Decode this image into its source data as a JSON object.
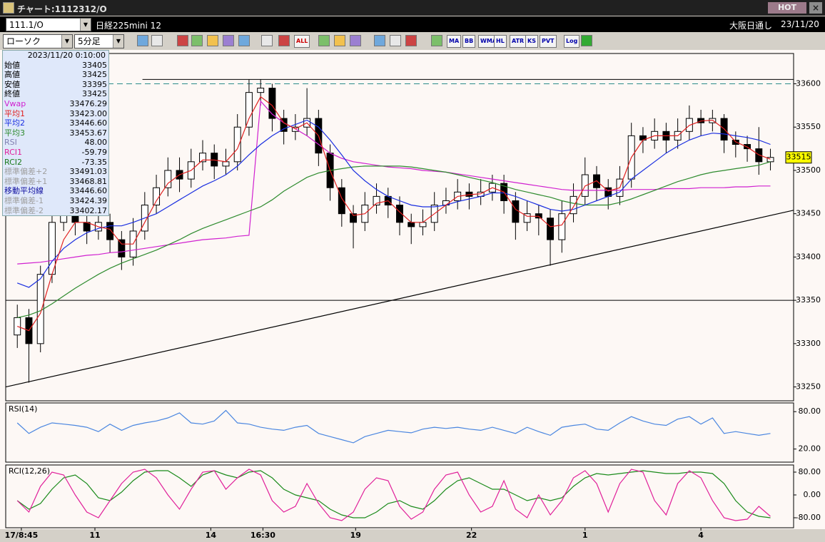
{
  "window": {
    "title": "チャート:1112312/O",
    "hot": "HOT"
  },
  "toolbar": {
    "symbol": "111.1/O",
    "name": "日経225mini 12",
    "market": "大阪日通し",
    "date": "23/11/20",
    "chart_type": "ローソク",
    "interval": "5分足",
    "buttons": [
      "ALL",
      "MA",
      "BB",
      "WMA",
      "HL",
      "ATR",
      "KS",
      "PVT",
      "Log"
    ]
  },
  "info_panel": {
    "datetime": "2023/11/20 0:10:00",
    "rows": [
      {
        "label": "始値",
        "value": "33405",
        "color": "#000000"
      },
      {
        "label": "高値",
        "value": "33425",
        "color": "#000000"
      },
      {
        "label": "安値",
        "value": "33395",
        "color": "#000000"
      },
      {
        "label": "終値",
        "value": "33425",
        "color": "#000000"
      },
      {
        "label": "Vwap",
        "value": "33476.29",
        "color": "#d020d0"
      },
      {
        "label": "平均1",
        "value": "33423.00",
        "color": "#e02020"
      },
      {
        "label": "平均2",
        "value": "33446.60",
        "color": "#1a2ee0"
      },
      {
        "label": "平均3",
        "value": "33453.67",
        "color": "#2e8b2e"
      },
      {
        "label": "RSI",
        "value": "48.00",
        "color": "#8080b0"
      },
      {
        "label": "RCI1",
        "value": "-59.79",
        "color": "#e0209a"
      },
      {
        "label": "RCI2",
        "value": "-73.35",
        "color": "#1a7a1a"
      },
      {
        "label": "標準偏差+2",
        "value": "33491.03",
        "color": "#a0a0a0"
      },
      {
        "label": "標準偏差+1",
        "value": "33468.81",
        "color": "#a0a0a0"
      },
      {
        "label": "移動平均線",
        "value": "33446.60",
        "color": "#1010a0"
      },
      {
        "label": "標準偏差-1",
        "value": "33424.39",
        "color": "#a0a0a0"
      },
      {
        "label": "標準偏差-2",
        "value": "33402.17",
        "color": "#a0a0a0"
      }
    ]
  },
  "chart_data": [
    {
      "type": "candlestick",
      "xlim": [
        -1,
        67
      ],
      "xticks": [
        {
          "value": 0.35,
          "label": "17/8:45"
        },
        {
          "value": 6.7,
          "label": "11"
        },
        {
          "value": 16.7,
          "label": "14"
        },
        {
          "value": 21.2,
          "label": "16:30"
        },
        {
          "value": 29.2,
          "label": "19"
        },
        {
          "value": 39.2,
          "label": "22"
        },
        {
          "value": 49,
          "label": "1"
        },
        {
          "value": 59,
          "label": "4"
        }
      ],
      "ylim": [
        33234,
        33635
      ],
      "yticks": [
        33250,
        33300,
        33350,
        33400,
        33450,
        33500,
        33550,
        33600
      ],
      "colors": {
        "up": "#ffffff",
        "down": "#000000"
      },
      "open": [
        33310,
        33330,
        33300,
        33380,
        33440,
        33450,
        33440,
        33430,
        33440,
        33420,
        33400,
        33430,
        33460,
        33480,
        33500,
        33490,
        33510,
        33520,
        33505,
        33510,
        33550,
        33590,
        33595,
        33560,
        33545,
        33550,
        33560,
        33520,
        33480,
        33450,
        33440,
        33460,
        33470,
        33460,
        33440,
        33435,
        33440,
        33460,
        33465,
        33475,
        33470,
        33475,
        33485,
        33465,
        33440,
        33450,
        33445,
        33420,
        33450,
        33470,
        33495,
        33480,
        33470,
        33490,
        33540,
        33535,
        33545,
        33535,
        33545,
        33560,
        33555,
        33560,
        33535,
        33530,
        33525,
        33510
      ],
      "high": [
        33345,
        33340,
        33390,
        33455,
        33465,
        33465,
        33455,
        33455,
        33450,
        33430,
        33445,
        33475,
        33495,
        33515,
        33515,
        33525,
        33535,
        33530,
        33525,
        33565,
        33605,
        33605,
        33600,
        33570,
        33565,
        33595,
        33570,
        33530,
        33490,
        33460,
        33475,
        33485,
        33480,
        33470,
        33450,
        33455,
        33475,
        33480,
        33490,
        33485,
        33490,
        33495,
        33495,
        33475,
        33465,
        33460,
        33455,
        33465,
        33485,
        33515,
        33505,
        33490,
        33505,
        33555,
        33550,
        33560,
        33555,
        33560,
        33575,
        33570,
        33570,
        33565,
        33545,
        33540,
        33550,
        33525
      ],
      "low": [
        33295,
        33255,
        33290,
        33370,
        33430,
        33425,
        33415,
        33420,
        33405,
        33385,
        33390,
        33420,
        33450,
        33470,
        33475,
        33480,
        33500,
        33490,
        33495,
        33500,
        33540,
        33575,
        33545,
        33530,
        33535,
        33540,
        33505,
        33465,
        33435,
        33410,
        33430,
        33450,
        33445,
        33425,
        33415,
        33425,
        33430,
        33450,
        33455,
        33455,
        33460,
        33465,
        33450,
        33420,
        33430,
        33425,
        33390,
        33405,
        33440,
        33460,
        33465,
        33455,
        33460,
        33480,
        33520,
        33525,
        33520,
        33525,
        33535,
        33540,
        33545,
        33520,
        33515,
        33510,
        33495,
        33500
      ],
      "close": [
        33330,
        33300,
        33380,
        33440,
        33450,
        33440,
        33430,
        33440,
        33420,
        33400,
        33430,
        33460,
        33480,
        33500,
        33490,
        33510,
        33520,
        33505,
        33510,
        33550,
        33590,
        33595,
        33560,
        33545,
        33550,
        33560,
        33520,
        33480,
        33450,
        33440,
        33460,
        33470,
        33460,
        33440,
        33435,
        33440,
        33460,
        33465,
        33475,
        33470,
        33475,
        33485,
        33465,
        33440,
        33450,
        33445,
        33420,
        33450,
        33470,
        33495,
        33480,
        33470,
        33490,
        33540,
        33535,
        33545,
        33535,
        33545,
        33560,
        33555,
        33560,
        33535,
        33530,
        33525,
        33510,
        33515
      ],
      "series": [
        {
          "color": "#d020d0",
          "values": [
            33392,
            33393,
            33394,
            33396,
            33398,
            33400,
            33402,
            33403,
            33405,
            33406,
            33408,
            33410,
            33412,
            33414,
            33416,
            33418,
            33420,
            33421,
            33422,
            33424,
            33425,
            33580,
            33565,
            33555,
            33548,
            33540,
            33530,
            33520,
            33514,
            33510,
            33508,
            33506,
            33504,
            33503,
            33502,
            33500,
            33499,
            33498,
            33496,
            33494,
            33492,
            33490,
            33488,
            33486,
            33484,
            33482,
            33480,
            33478,
            33477,
            33477,
            33477,
            33477,
            33477,
            33478,
            33478,
            33478,
            33479,
            33479,
            33479,
            33480,
            33480,
            33480,
            33481,
            33481,
            33482,
            33482
          ]
        },
        {
          "color": "#2e8b2e",
          "values": [
            33330,
            33333,
            33338,
            33346,
            33355,
            33364,
            33372,
            33380,
            33387,
            33393,
            33398,
            33403,
            33408,
            33414,
            33420,
            33427,
            33433,
            33438,
            33443,
            33448,
            33453,
            33458,
            33466,
            33476,
            33484,
            33492,
            33497,
            33500,
            33502,
            33504,
            33505,
            33505,
            33505,
            33505,
            33504,
            33502,
            33500,
            33498,
            33495,
            33492,
            33489,
            33486,
            33482,
            33478,
            33475,
            33472,
            33469,
            33465,
            33462,
            33460,
            33460,
            33460,
            33463,
            33467,
            33472,
            33477,
            33482,
            33487,
            33491,
            33495,
            33498,
            33500,
            33502,
            33504,
            33506,
            33510
          ]
        },
        {
          "color": "#1a2ee0",
          "values": [
            33370,
            33365,
            33375,
            33395,
            33410,
            33420,
            33428,
            33433,
            33436,
            33436,
            33440,
            33445,
            33450,
            33458,
            33466,
            33474,
            33482,
            33488,
            33495,
            33505,
            33518,
            33530,
            33540,
            33548,
            33553,
            33558,
            33550,
            33535,
            33518,
            33500,
            33488,
            33478,
            33470,
            33465,
            33460,
            33458,
            33458,
            33460,
            33464,
            33467,
            33470,
            33474,
            33474,
            33470,
            33465,
            33460,
            33455,
            33453,
            33455,
            33460,
            33465,
            33470,
            33475,
            33490,
            33500,
            33510,
            33520,
            33528,
            33535,
            33540,
            33543,
            33542,
            33540,
            33538,
            33535,
            33530
          ]
        },
        {
          "color": "#e02020",
          "values": [
            33320,
            33315,
            33335,
            33380,
            33420,
            33440,
            33440,
            33435,
            33432,
            33415,
            33415,
            33440,
            33465,
            33485,
            33495,
            33500,
            33512,
            33512,
            33510,
            33525,
            33560,
            33585,
            33575,
            33555,
            33548,
            33555,
            33540,
            33500,
            33468,
            33448,
            33450,
            33462,
            33465,
            33452,
            33440,
            33440,
            33450,
            33460,
            33470,
            33472,
            33473,
            33480,
            33475,
            33455,
            33447,
            33447,
            33435,
            33437,
            33458,
            33482,
            33488,
            33476,
            33480,
            33515,
            33535,
            33540,
            33540,
            33540,
            33552,
            33557,
            33558,
            33548,
            33533,
            33527,
            33518,
            33513
          ]
        }
      ],
      "hlines": [
        {
          "value": 33605,
          "color": "#000000",
          "from": 10.8
        },
        {
          "value": 33600,
          "color": "#2a8a8a",
          "dashed": true
        },
        {
          "value": 33350,
          "color": "#000000"
        }
      ],
      "trendline": {
        "x": [
          -1,
          67
        ],
        "y": [
          33250,
          33454
        ],
        "color": "#000000"
      },
      "last_price": 33515
    },
    {
      "type": "line",
      "title": "RSI(14)",
      "ylim": [
        -1,
        94
      ],
      "yticks": [
        {
          "value": 80,
          "label": "80.00"
        },
        {
          "value": 20,
          "label": "20.00"
        }
      ],
      "series": [
        {
          "color": "#4a86e0",
          "values": [
            62,
            45,
            55,
            62,
            60,
            58,
            55,
            48,
            60,
            50,
            58,
            62,
            65,
            70,
            78,
            62,
            60,
            65,
            82,
            62,
            60,
            55,
            52,
            50,
            55,
            58,
            45,
            40,
            35,
            30,
            40,
            45,
            50,
            48,
            46,
            52,
            55,
            53,
            55,
            52,
            50,
            55,
            50,
            45,
            55,
            48,
            42,
            55,
            58,
            60,
            52,
            50,
            62,
            72,
            65,
            60,
            58,
            68,
            72,
            60,
            70,
            45,
            48,
            45,
            42,
            45
          ]
        }
      ]
    },
    {
      "type": "line",
      "title": "RCI(12,26)",
      "ylim": [
        -115,
        105
      ],
      "yticks": [
        {
          "value": 80,
          "label": "80.00"
        },
        {
          "value": 0,
          "label": "0.00"
        },
        {
          "value": -80,
          "label": "-80.00"
        }
      ],
      "series": [
        {
          "color": "#1a8a1a",
          "values": [
            -20,
            -50,
            -30,
            20,
            60,
            70,
            40,
            -10,
            -20,
            10,
            50,
            80,
            85,
            85,
            60,
            30,
            70,
            85,
            70,
            60,
            80,
            85,
            60,
            20,
            0,
            -10,
            -20,
            -50,
            -70,
            -80,
            -80,
            -60,
            -30,
            -20,
            -40,
            -50,
            -20,
            20,
            50,
            60,
            40,
            20,
            20,
            0,
            -20,
            -10,
            -20,
            -10,
            30,
            60,
            75,
            70,
            75,
            80,
            85,
            80,
            75,
            75,
            80,
            80,
            75,
            40,
            -20,
            -60,
            -75,
            -80
          ]
        },
        {
          "color": "#e0209a",
          "values": [
            -20,
            -60,
            30,
            80,
            70,
            0,
            -60,
            -80,
            -20,
            40,
            80,
            90,
            60,
            0,
            -50,
            20,
            80,
            85,
            20,
            60,
            90,
            70,
            -20,
            -60,
            -40,
            40,
            -30,
            -80,
            -90,
            -60,
            20,
            60,
            50,
            -40,
            -85,
            -60,
            20,
            70,
            80,
            0,
            -60,
            -40,
            50,
            -50,
            -80,
            0,
            -70,
            -20,
            60,
            85,
            40,
            -60,
            40,
            90,
            80,
            -20,
            -70,
            40,
            85,
            60,
            -20,
            -80,
            -90,
            -85,
            -40,
            -75
          ]
        }
      ]
    }
  ]
}
